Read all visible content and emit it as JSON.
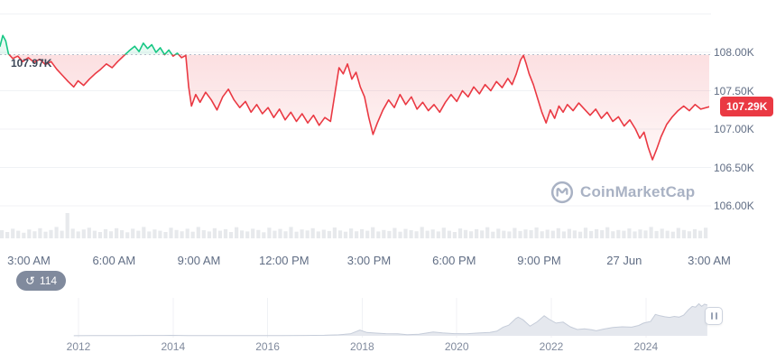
{
  "ui_colors": {
    "grid": "#F0F2F5",
    "axis_text": "#616E85",
    "year_text": "#808A9D",
    "dark_label": "#3C4656",
    "volume": "#E7E9EC",
    "mini_fill": "#E5E8EE",
    "mini_stroke": "#C5CCD9",
    "dotted_line": "#B6BECB",
    "pill_bg": "#808A9D",
    "watermark": "#A9B2C4",
    "handle_border": "#CDD3DE",
    "handle_bar": "#99A3B5"
  },
  "watermark": {
    "text": "CoinMarketCap",
    "icon": "coinmarketcap-logo"
  },
  "history_badge": {
    "count": "114",
    "icon": "history-icon"
  },
  "mini_chart": {
    "type": "area",
    "year_ticks": [
      {
        "label": "2012",
        "value": 2012
      },
      {
        "label": "2014",
        "value": 2014
      },
      {
        "label": "2016",
        "value": 2016
      },
      {
        "label": "2018",
        "value": 2018
      },
      {
        "label": "2020",
        "value": 2020
      },
      {
        "label": "2022",
        "value": 2022
      },
      {
        "label": "2024",
        "value": 2024
      }
    ],
    "points": [
      [
        2011.9,
        0.004
      ],
      [
        2012.3,
        0.005
      ],
      [
        2012.8,
        0.006
      ],
      [
        2013.1,
        0.008
      ],
      [
        2013.4,
        0.01
      ],
      [
        2013.8,
        0.012
      ],
      [
        2013.95,
        0.014
      ],
      [
        2014.3,
        0.008
      ],
      [
        2014.8,
        0.006
      ],
      [
        2015.3,
        0.005
      ],
      [
        2015.8,
        0.006
      ],
      [
        2016.3,
        0.008
      ],
      [
        2016.8,
        0.01
      ],
      [
        2017.2,
        0.015
      ],
      [
        2017.5,
        0.03
      ],
      [
        2017.75,
        0.06
      ],
      [
        2017.95,
        0.17
      ],
      [
        2018.1,
        0.1
      ],
      [
        2018.3,
        0.08
      ],
      [
        2018.5,
        0.065
      ],
      [
        2018.75,
        0.06
      ],
      [
        2018.95,
        0.035
      ],
      [
        2019.2,
        0.045
      ],
      [
        2019.5,
        0.115
      ],
      [
        2019.7,
        0.09
      ],
      [
        2019.95,
        0.065
      ],
      [
        2020.2,
        0.06
      ],
      [
        2020.45,
        0.085
      ],
      [
        2020.7,
        0.1
      ],
      [
        2020.85,
        0.14
      ],
      [
        2020.98,
        0.26
      ],
      [
        2021.1,
        0.32
      ],
      [
        2021.25,
        0.52
      ],
      [
        2021.3,
        0.56
      ],
      [
        2021.4,
        0.48
      ],
      [
        2021.55,
        0.29
      ],
      [
        2021.7,
        0.42
      ],
      [
        2021.85,
        0.6
      ],
      [
        2021.95,
        0.5
      ],
      [
        2022.1,
        0.38
      ],
      [
        2022.25,
        0.41
      ],
      [
        2022.4,
        0.27
      ],
      [
        2022.55,
        0.19
      ],
      [
        2022.7,
        0.21
      ],
      [
        2022.85,
        0.18
      ],
      [
        2022.95,
        0.15
      ],
      [
        2023.1,
        0.2
      ],
      [
        2023.3,
        0.25
      ],
      [
        2023.5,
        0.27
      ],
      [
        2023.7,
        0.26
      ],
      [
        2023.85,
        0.31
      ],
      [
        2023.95,
        0.38
      ],
      [
        2024.1,
        0.43
      ],
      [
        2024.2,
        0.64
      ],
      [
        2024.3,
        0.6
      ],
      [
        2024.4,
        0.57
      ],
      [
        2024.5,
        0.55
      ],
      [
        2024.6,
        0.58
      ],
      [
        2024.7,
        0.56
      ],
      [
        2024.8,
        0.62
      ],
      [
        2024.9,
        0.78
      ],
      [
        2024.98,
        0.88
      ],
      [
        2025.05,
        0.86
      ],
      [
        2025.12,
        0.96
      ],
      [
        2025.18,
        0.88
      ],
      [
        2025.24,
        0.95
      ],
      [
        2025.3,
        0.92
      ]
    ]
  },
  "chart_data": {
    "type": "line",
    "title": "24h price chart with volume and full-history range selector",
    "up_color": "#16C784",
    "down_color": "#EA3943",
    "legend_position": "none",
    "grid": true,
    "reference": {
      "label": "107.97K",
      "value": 107.97
    },
    "last": {
      "label": "107.29K",
      "value": 107.29
    },
    "y_ticks": [
      {
        "label": "108.00K",
        "value": 108.0
      },
      {
        "label": "107.50K",
        "value": 107.5
      },
      {
        "label": "107.00K",
        "value": 107.0
      },
      {
        "label": "106.50K",
        "value": 106.5
      },
      {
        "label": "106.00K",
        "value": 106.0
      }
    ],
    "y_grid_extra_values": [
      108.5
    ],
    "ylim": [
      105.9,
      108.7
    ],
    "x_ticks": [
      "3:00 AM",
      "6:00 AM",
      "9:00 AM",
      "12:00 PM",
      "3:00 PM",
      "6:00 PM",
      "9:00 PM",
      "27 Jun",
      "3:00 AM"
    ],
    "price_points": [
      [
        0.0,
        108.08
      ],
      [
        0.004,
        108.22
      ],
      [
        0.008,
        108.15
      ],
      [
        0.012,
        107.98
      ],
      [
        0.018,
        107.92
      ],
      [
        0.025,
        107.95
      ],
      [
        0.032,
        107.88
      ],
      [
        0.04,
        107.93
      ],
      [
        0.048,
        107.87
      ],
      [
        0.056,
        107.91
      ],
      [
        0.064,
        107.84
      ],
      [
        0.072,
        107.88
      ],
      [
        0.08,
        107.78
      ],
      [
        0.088,
        107.7
      ],
      [
        0.096,
        107.62
      ],
      [
        0.104,
        107.55
      ],
      [
        0.11,
        107.63
      ],
      [
        0.118,
        107.57
      ],
      [
        0.126,
        107.65
      ],
      [
        0.134,
        107.72
      ],
      [
        0.142,
        107.78
      ],
      [
        0.15,
        107.85
      ],
      [
        0.158,
        107.8
      ],
      [
        0.166,
        107.88
      ],
      [
        0.174,
        107.95
      ],
      [
        0.182,
        108.02
      ],
      [
        0.19,
        108.08
      ],
      [
        0.196,
        108.01
      ],
      [
        0.202,
        108.12
      ],
      [
        0.208,
        108.05
      ],
      [
        0.214,
        108.1
      ],
      [
        0.22,
        108.0
      ],
      [
        0.226,
        108.06
      ],
      [
        0.232,
        107.97
      ],
      [
        0.238,
        108.03
      ],
      [
        0.244,
        107.95
      ],
      [
        0.25,
        107.99
      ],
      [
        0.256,
        107.93
      ],
      [
        0.262,
        107.96
      ],
      [
        0.266,
        107.55
      ],
      [
        0.27,
        107.3
      ],
      [
        0.276,
        107.45
      ],
      [
        0.282,
        107.35
      ],
      [
        0.29,
        107.48
      ],
      [
        0.298,
        107.38
      ],
      [
        0.306,
        107.25
      ],
      [
        0.314,
        107.42
      ],
      [
        0.322,
        107.52
      ],
      [
        0.33,
        107.38
      ],
      [
        0.338,
        107.28
      ],
      [
        0.346,
        107.36
      ],
      [
        0.354,
        107.22
      ],
      [
        0.362,
        107.32
      ],
      [
        0.37,
        107.2
      ],
      [
        0.378,
        107.28
      ],
      [
        0.386,
        107.15
      ],
      [
        0.394,
        107.26
      ],
      [
        0.402,
        107.12
      ],
      [
        0.41,
        107.22
      ],
      [
        0.418,
        107.1
      ],
      [
        0.426,
        107.2
      ],
      [
        0.434,
        107.08
      ],
      [
        0.442,
        107.18
      ],
      [
        0.45,
        107.05
      ],
      [
        0.458,
        107.15
      ],
      [
        0.466,
        107.1
      ],
      [
        0.472,
        107.45
      ],
      [
        0.478,
        107.8
      ],
      [
        0.484,
        107.72
      ],
      [
        0.49,
        107.85
      ],
      [
        0.496,
        107.65
      ],
      [
        0.502,
        107.74
      ],
      [
        0.508,
        107.55
      ],
      [
        0.514,
        107.42
      ],
      [
        0.52,
        107.15
      ],
      [
        0.526,
        106.93
      ],
      [
        0.532,
        107.08
      ],
      [
        0.54,
        107.25
      ],
      [
        0.548,
        107.38
      ],
      [
        0.556,
        107.28
      ],
      [
        0.564,
        107.45
      ],
      [
        0.572,
        107.32
      ],
      [
        0.58,
        107.42
      ],
      [
        0.588,
        107.26
      ],
      [
        0.596,
        107.35
      ],
      [
        0.604,
        107.24
      ],
      [
        0.612,
        107.32
      ],
      [
        0.62,
        107.22
      ],
      [
        0.628,
        107.35
      ],
      [
        0.636,
        107.45
      ],
      [
        0.644,
        107.36
      ],
      [
        0.652,
        107.5
      ],
      [
        0.66,
        107.42
      ],
      [
        0.668,
        107.55
      ],
      [
        0.676,
        107.46
      ],
      [
        0.684,
        107.58
      ],
      [
        0.692,
        107.5
      ],
      [
        0.7,
        107.62
      ],
      [
        0.708,
        107.54
      ],
      [
        0.716,
        107.66
      ],
      [
        0.722,
        107.58
      ],
      [
        0.728,
        107.72
      ],
      [
        0.734,
        107.9
      ],
      [
        0.738,
        107.96
      ],
      [
        0.742,
        107.85
      ],
      [
        0.746,
        107.72
      ],
      [
        0.752,
        107.58
      ],
      [
        0.758,
        107.4
      ],
      [
        0.764,
        107.22
      ],
      [
        0.77,
        107.08
      ],
      [
        0.776,
        107.25
      ],
      [
        0.782,
        107.14
      ],
      [
        0.788,
        107.3
      ],
      [
        0.794,
        107.22
      ],
      [
        0.8,
        107.32
      ],
      [
        0.808,
        107.24
      ],
      [
        0.816,
        107.34
      ],
      [
        0.824,
        107.26
      ],
      [
        0.832,
        107.18
      ],
      [
        0.84,
        107.26
      ],
      [
        0.848,
        107.14
      ],
      [
        0.856,
        107.22
      ],
      [
        0.864,
        107.1
      ],
      [
        0.872,
        107.16
      ],
      [
        0.88,
        107.04
      ],
      [
        0.888,
        107.12
      ],
      [
        0.896,
        107.0
      ],
      [
        0.902,
        106.88
      ],
      [
        0.908,
        106.96
      ],
      [
        0.914,
        106.76
      ],
      [
        0.92,
        106.6
      ],
      [
        0.926,
        106.74
      ],
      [
        0.932,
        106.9
      ],
      [
        0.94,
        107.06
      ],
      [
        0.948,
        107.16
      ],
      [
        0.956,
        107.24
      ],
      [
        0.964,
        107.3
      ],
      [
        0.972,
        107.24
      ],
      [
        0.98,
        107.32
      ],
      [
        0.988,
        107.26
      ],
      [
        1.0,
        107.29
      ]
    ],
    "volume_bars": [
      0.32,
      0.25,
      0.38,
      0.3,
      0.22,
      0.35,
      0.28,
      0.4,
      0.26,
      0.33,
      0.45,
      0.3,
      1.0,
      0.38,
      0.27,
      0.35,
      0.42,
      0.3,
      0.25,
      0.36,
      0.28,
      0.4,
      0.32,
      0.24,
      0.38,
      0.3,
      0.45,
      0.27,
      0.35,
      0.3,
      0.25,
      0.42,
      0.33,
      0.28,
      0.38,
      0.26,
      0.45,
      0.32,
      0.27,
      0.4,
      0.3,
      0.36,
      0.25,
      0.44,
      0.31,
      0.27,
      0.38,
      0.33,
      0.24,
      0.42,
      0.3,
      0.37,
      0.28,
      0.45,
      0.26,
      0.35,
      0.31,
      0.4,
      0.27,
      0.34,
      0.29,
      0.43,
      0.31,
      0.26,
      0.39,
      0.28,
      0.36,
      0.3,
      0.44,
      0.27,
      0.33,
      0.29,
      0.41,
      0.26,
      0.37,
      0.32,
      0.28,
      0.45,
      0.3,
      0.35,
      0.27,
      0.42,
      0.3,
      0.25,
      0.39,
      0.33,
      0.28,
      0.36,
      0.31,
      0.44,
      0.26,
      0.38,
      0.3,
      0.27,
      0.41,
      0.29,
      0.35,
      0.32,
      0.43,
      0.28,
      0.34,
      0.3,
      0.4,
      0.27,
      0.37,
      0.31,
      0.26,
      0.42,
      0.29,
      0.36,
      0.32,
      0.44,
      0.28,
      0.33,
      0.3,
      0.39,
      0.27,
      0.35,
      0.31,
      0.45,
      0.29,
      0.38,
      0.3,
      0.26,
      0.41,
      0.33,
      0.28,
      0.36,
      0.3,
      0.42
    ]
  }
}
